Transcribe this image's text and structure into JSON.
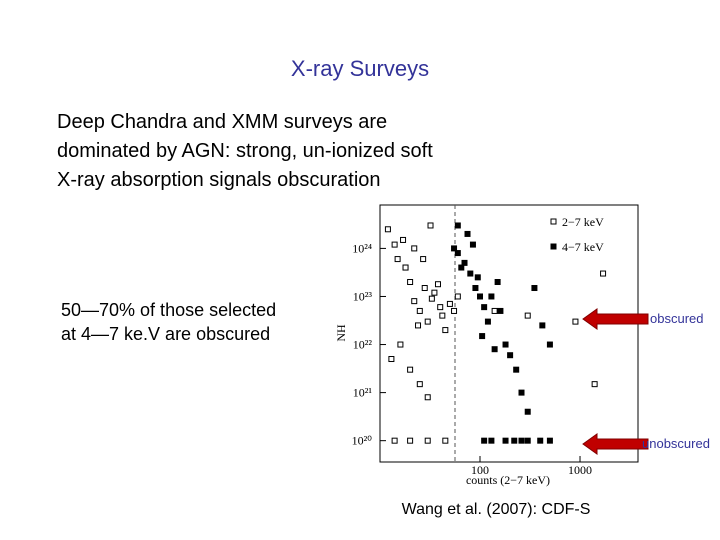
{
  "slide": {
    "title": "X-ray Surveys",
    "paragraph": [
      "Deep Chandra and XMM surveys are",
      "dominated by AGN: strong, un-ionized soft",
      "X-ray absorption signals obscuration"
    ],
    "bullet": [
      "50—70% of those selected",
      "at 4—7 ke.V are obscured"
    ],
    "arrow_labels": [
      "obscured",
      "unobscured"
    ],
    "citation": "Wang et al. (2007): CDF-S"
  },
  "chart_data": {
    "type": "scatter",
    "x_label": "counts (2−7 keV)",
    "y_label": "NH",
    "xlog": true,
    "ylog": true,
    "xlim": [
      10,
      3800
    ],
    "ylim": [
      3.6e+19,
      8e+24
    ],
    "xticks": [
      100,
      1000
    ],
    "yticks": [
      {
        "value": 1e+20,
        "label": "10²⁰"
      },
      {
        "value": 1e+21,
        "label": "10²¹"
      },
      {
        "value": 1e+22,
        "label": "10²²"
      },
      {
        "value": 1e+23,
        "label": "10²³"
      },
      {
        "value": 1e+24,
        "label": "10²⁴"
      }
    ],
    "series": [
      {
        "name": "2−7 keV",
        "color": "#000000",
        "marker": "open",
        "x": [
          12,
          14,
          15,
          18,
          20,
          22,
          25,
          28,
          30,
          35,
          40,
          45,
          16,
          13,
          20,
          25,
          30,
          18,
          33,
          38,
          42,
          50,
          24,
          14,
          20,
          30,
          45,
          27,
          32,
          17,
          22,
          60,
          55,
          140,
          300,
          900,
          1400,
          1700
        ],
        "y": [
          2.5e+24,
          1.2e+24,
          6e+23,
          4e+23,
          2e+23,
          8e+22,
          5e+22,
          1.5e+23,
          3e+22,
          1.2e+23,
          6e+22,
          2e+22,
          1e+22,
          5e+21,
          3e+21,
          1.5e+21,
          8e+20,
          4e+23,
          9e+22,
          1.8e+23,
          4e+22,
          7e+22,
          2.5e+22,
          1e+20,
          1e+20,
          1e+20,
          1e+20,
          6e+23,
          3e+24,
          1.5e+24,
          1e+24,
          1e+23,
          5e+22,
          5e+22,
          4e+22,
          3e+22,
          1.5e+21,
          3e+23
        ]
      },
      {
        "name": "4−7 keV",
        "color": "#000000",
        "marker": "filled",
        "x": [
          60,
          70,
          80,
          90,
          100,
          110,
          120,
          130,
          150,
          160,
          180,
          200,
          230,
          260,
          300,
          60,
          75,
          85,
          65,
          95,
          105,
          140,
          350,
          420,
          500,
          55,
          180,
          220,
          260,
          300,
          400,
          500,
          110,
          130
        ],
        "y": [
          8e+23,
          5e+23,
          3e+23,
          1.5e+23,
          1e+23,
          6e+22,
          3e+22,
          1e+23,
          2e+23,
          5e+22,
          1e+22,
          6e+21,
          3e+21,
          1e+21,
          4e+20,
          3e+24,
          2e+24,
          1.2e+24,
          4e+23,
          2.5e+23,
          1.5e+22,
          8e+21,
          1.5e+23,
          2.5e+22,
          1e+22,
          1e+24,
          1e+20,
          1e+20,
          1e+20,
          1e+20,
          1e+20,
          1e+20,
          1e+20,
          1e+20
        ]
      }
    ]
  }
}
